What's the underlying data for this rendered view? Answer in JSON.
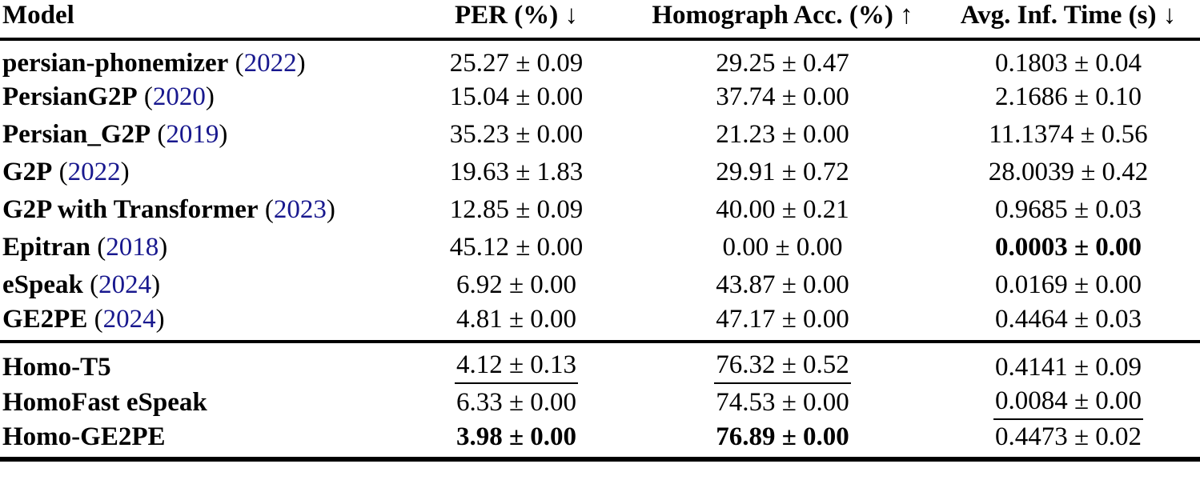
{
  "table": {
    "columns": [
      {
        "label": "Model"
      },
      {
        "label": "PER (%) ↓"
      },
      {
        "label": "Homograph Acc. (%) ↑"
      },
      {
        "label": "Avg. Inf. Time (s) ↓"
      }
    ],
    "punctuation": {
      "cite_open": " (",
      "cite_close": ")"
    },
    "groups": [
      {
        "name": "baseline-models",
        "rows": [
          {
            "model": "persian-phonemizer",
            "year": "2022",
            "per": "25.27 ± 0.09",
            "homograph": "29.25 ± 0.47",
            "inf_time": "0.1803 ± 0.04",
            "styles": {}
          },
          {
            "model": "PersianG2P",
            "year": "2020",
            "per": "15.04 ± 0.00",
            "homograph": "37.74 ± 0.00",
            "inf_time": "2.1686 ± 0.10",
            "styles": {}
          },
          {
            "model": "Persian_G2P",
            "year": "2019",
            "per": "35.23 ± 0.00",
            "homograph": "21.23 ± 0.00",
            "inf_time": "11.1374 ± 0.56",
            "styles": {}
          },
          {
            "model": "G2P",
            "year": "2022",
            "per": "19.63 ± 1.83",
            "homograph": "29.91 ± 0.72",
            "inf_time": "28.0039 ± 0.42",
            "styles": {}
          },
          {
            "model": "G2P with Transformer",
            "year": "2023",
            "per": "12.85 ± 0.09",
            "homograph": "40.00 ± 0.21",
            "inf_time": "0.9685 ± 0.03",
            "styles": {}
          },
          {
            "model": "Epitran",
            "year": "2018",
            "per": "45.12 ± 0.00",
            "homograph": "0.00 ± 0.00",
            "inf_time": "0.0003 ± 0.00",
            "styles": {
              "inf_time": "bold"
            }
          },
          {
            "model": "eSpeak",
            "year": "2024",
            "per": "6.92 ± 0.00",
            "homograph": "43.87 ± 0.00",
            "inf_time": "0.0169 ± 0.00",
            "styles": {}
          },
          {
            "model": "GE2PE",
            "year": "2024",
            "per": "4.81 ± 0.00",
            "homograph": "47.17 ± 0.00",
            "inf_time": "0.4464 ± 0.03",
            "styles": {}
          }
        ]
      },
      {
        "name": "proposed-models",
        "rows": [
          {
            "model": "Homo-T5",
            "year": null,
            "per": "4.12 ± 0.13",
            "homograph": "76.32 ± 0.52",
            "inf_time": "0.4141 ± 0.09",
            "styles": {
              "per": "underline",
              "homograph": "underline"
            }
          },
          {
            "model": "HomoFast eSpeak",
            "year": null,
            "per": "6.33 ± 0.00",
            "homograph": "74.53 ± 0.00",
            "inf_time": "0.0084 ± 0.00",
            "styles": {
              "inf_time": "underline"
            }
          },
          {
            "model": "Homo-GE2PE",
            "year": null,
            "per": "3.98 ± 0.00",
            "homograph": "76.89 ± 0.00",
            "inf_time": "0.4473 ± 0.02",
            "styles": {
              "per": "bold",
              "homograph": "bold"
            }
          }
        ]
      }
    ]
  },
  "colors": {
    "text": "#000000",
    "citation_link": "#18188e",
    "rule": "#000000",
    "background": "#ffffff"
  }
}
